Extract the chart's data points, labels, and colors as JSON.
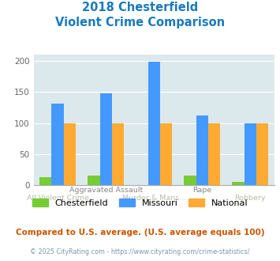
{
  "title_line1": "2018 Chesterfield",
  "title_line2": "Violent Crime Comparison",
  "categories": [
    "All Violent Crime",
    "Aggravated Assault",
    "Murder & Mans...",
    "Rape",
    "Robbery"
  ],
  "top_labels": [
    "",
    "Aggravated Assault",
    "",
    "Rape",
    ""
  ],
  "bot_labels": [
    "All Violent Crime",
    "",
    "Murder & Mans...",
    "",
    "Robbery"
  ],
  "chesterfield": [
    13,
    16,
    0,
    16,
    6
  ],
  "missouri": [
    132,
    148,
    199,
    113,
    100
  ],
  "national": [
    100,
    100,
    100,
    100,
    100
  ],
  "bar_colors": {
    "chesterfield": "#77cc33",
    "missouri": "#4499ff",
    "national": "#ffaa33"
  },
  "ylim": [
    0,
    210
  ],
  "yticks": [
    0,
    50,
    100,
    150,
    200
  ],
  "plot_bg": "#dce9ec",
  "fig_bg": "#ffffff",
  "title_color": "#1a7abd",
  "top_label_color": "#888888",
  "bot_label_color": "#bbbbaa",
  "subtitle_note": "Compared to U.S. average. (U.S. average equals 100)",
  "subtitle_color": "#cc5500",
  "footer": "© 2025 CityRating.com - https://www.cityrating.com/crime-statistics/",
  "footer_color": "#7799aa",
  "legend_labels": [
    "Chesterfield",
    "Missouri",
    "National"
  ],
  "grid_color": "#ffffff",
  "spine_color": "#aaaaaa"
}
